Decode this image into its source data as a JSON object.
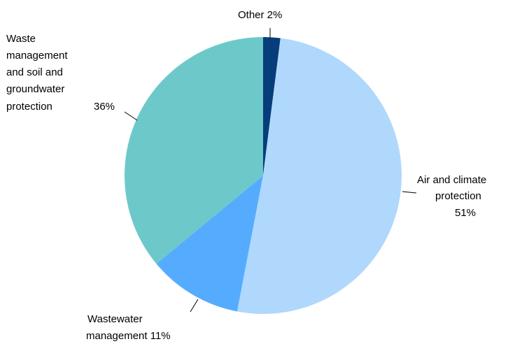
{
  "chart_data": {
    "type": "pie",
    "title": "",
    "start_angle_deg": 0,
    "direction": "clockwise",
    "slices": [
      {
        "name": "Other",
        "value": 2,
        "value_label": "2%",
        "color": "#073d7a"
      },
      {
        "name": "Air and climate protection",
        "value": 51,
        "value_label": "51%",
        "color": "#b0d8fc"
      },
      {
        "name": "Wastewater management",
        "value": 11,
        "value_label": "11%",
        "color": "#55acff"
      },
      {
        "name": "Waste management and soil and groundwater protection",
        "value": 36,
        "value_label": "36%",
        "color": "#6dc9c9"
      }
    ],
    "labels": {
      "other": {
        "lines": [
          "Other  2%"
        ]
      },
      "air": {
        "lines": [
          "Air and climate",
          "protection",
          "51%"
        ]
      },
      "wastewater": {
        "lines": [
          "Wastewater",
          "management  11%"
        ]
      },
      "waste": {
        "lines": [
          "Waste",
          "management",
          "and soil and",
          "groundwater",
          "protection"
        ],
        "value": "36%"
      }
    }
  }
}
